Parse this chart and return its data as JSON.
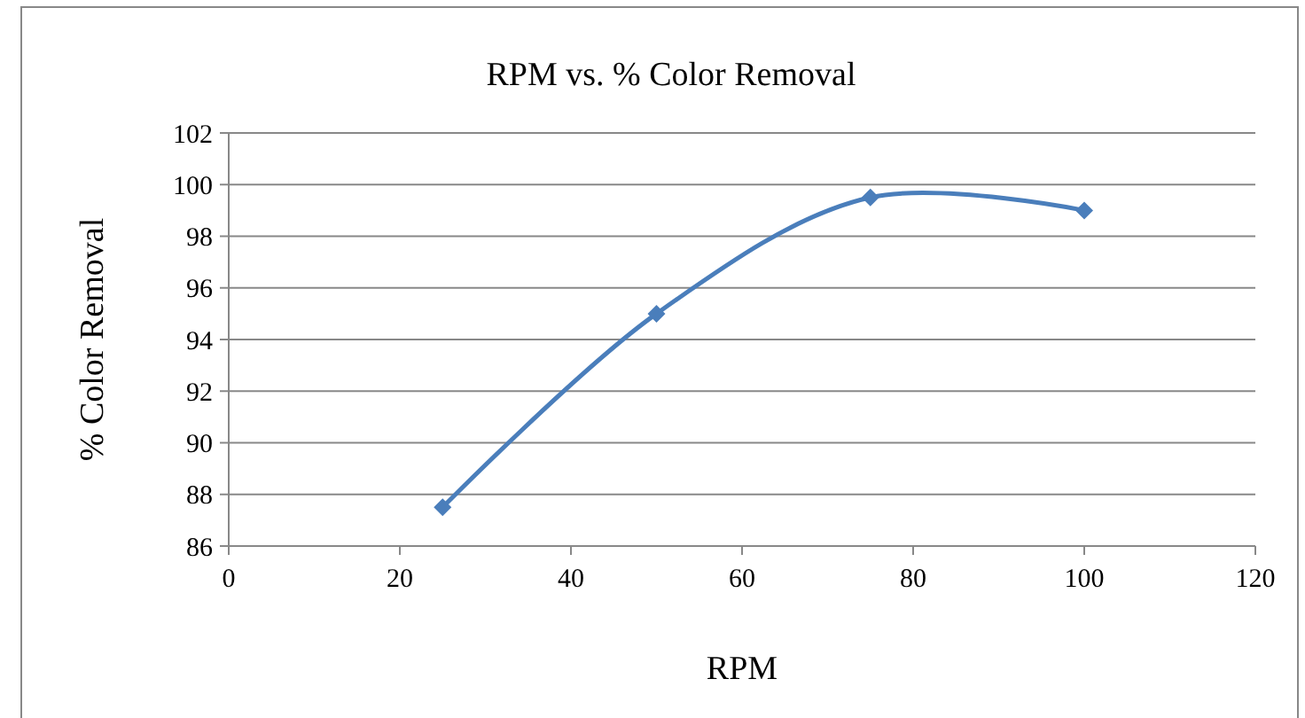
{
  "chart_data": {
    "type": "line",
    "title": "RPM vs. % Color Removal",
    "xlabel": "RPM",
    "ylabel": "% Color Removal",
    "x": [
      25,
      50,
      75,
      100
    ],
    "series": [
      {
        "color": "#4a7ebb",
        "values": [
          87.5,
          95,
          99.5,
          99
        ]
      }
    ],
    "xlim": [
      0,
      120
    ],
    "xticks": [
      0,
      20,
      40,
      60,
      80,
      100,
      120
    ],
    "ylim": [
      86,
      102
    ],
    "yticks": [
      86,
      88,
      90,
      92,
      94,
      96,
      98,
      100,
      102
    ],
    "grid": "y",
    "marker": "diamond",
    "line_style": "solid"
  }
}
